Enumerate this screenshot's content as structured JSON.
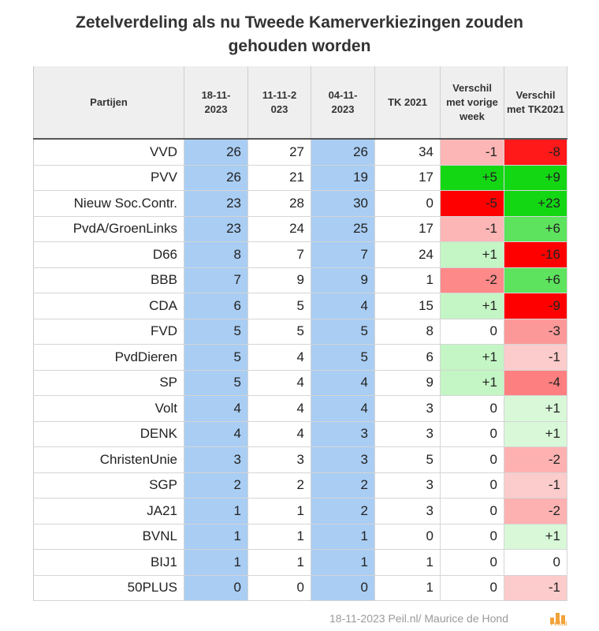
{
  "title_line1": "Zetelverdeling als nu Tweede Kamerverkiezingen zouden",
  "title_line2": "gehouden worden",
  "chart_data": {
    "type": "table",
    "title": "Zetelverdeling als nu Tweede Kamerverkiezingen zouden gehouden worden",
    "headers": [
      "Partijen",
      "18-11-2023",
      "11-11-2023",
      "04-11-2023",
      "TK 2021",
      "Verschil met vorige week",
      "Verschil met TK2021"
    ],
    "rows": [
      {
        "party": "VVD",
        "v1": 26,
        "v2": 27,
        "v3": 26,
        "tk": 34,
        "d1": "-1",
        "d2": "-8"
      },
      {
        "party": "PVV",
        "v1": 26,
        "v2": 21,
        "v3": 19,
        "tk": 17,
        "d1": "+5",
        "d2": "+9"
      },
      {
        "party": "Nieuw Soc.Contr.",
        "v1": 23,
        "v2": 28,
        "v3": 30,
        "tk": 0,
        "d1": "-5",
        "d2": "+23"
      },
      {
        "party": "PvdA/GroenLinks",
        "v1": 23,
        "v2": 24,
        "v3": 25,
        "tk": 17,
        "d1": "-1",
        "d2": "+6"
      },
      {
        "party": "D66",
        "v1": 8,
        "v2": 7,
        "v3": 7,
        "tk": 24,
        "d1": "+1",
        "d2": "-16"
      },
      {
        "party": "BBB",
        "v1": 7,
        "v2": 9,
        "v3": 9,
        "tk": 1,
        "d1": "-2",
        "d2": "+6"
      },
      {
        "party": "CDA",
        "v1": 6,
        "v2": 5,
        "v3": 4,
        "tk": 15,
        "d1": "+1",
        "d2": "-9"
      },
      {
        "party": "FVD",
        "v1": 5,
        "v2": 5,
        "v3": 5,
        "tk": 8,
        "d1": "0",
        "d2": "-3"
      },
      {
        "party": "PvdDieren",
        "v1": 5,
        "v2": 4,
        "v3": 5,
        "tk": 6,
        "d1": "+1",
        "d2": "-1"
      },
      {
        "party": "SP",
        "v1": 5,
        "v2": 4,
        "v3": 4,
        "tk": 9,
        "d1": "+1",
        "d2": "-4"
      },
      {
        "party": "Volt",
        "v1": 4,
        "v2": 4,
        "v3": 4,
        "tk": 3,
        "d1": "0",
        "d2": "+1"
      },
      {
        "party": "DENK",
        "v1": 4,
        "v2": 4,
        "v3": 3,
        "tk": 3,
        "d1": "0",
        "d2": "+1"
      },
      {
        "party": "ChristenUnie",
        "v1": 3,
        "v2": 3,
        "v3": 3,
        "tk": 5,
        "d1": "0",
        "d2": "-2"
      },
      {
        "party": "SGP",
        "v1": 2,
        "v2": 2,
        "v3": 2,
        "tk": 3,
        "d1": "0",
        "d2": "-1"
      },
      {
        "party": "JA21",
        "v1": 1,
        "v2": 1,
        "v3": 2,
        "tk": 3,
        "d1": "0",
        "d2": "-2"
      },
      {
        "party": "BVNL",
        "v1": 1,
        "v2": 1,
        "v3": 1,
        "tk": 0,
        "d1": "0",
        "d2": "+1"
      },
      {
        "party": "BIJ1",
        "v1": 1,
        "v2": 1,
        "v3": 1,
        "tk": 1,
        "d1": "0",
        "d2": "0"
      },
      {
        "party": "50PLUS",
        "v1": 0,
        "v2": 0,
        "v3": 0,
        "tk": 1,
        "d1": "0",
        "d2": "-1"
      }
    ]
  },
  "footer": "18-11-2023 Peil.nl/ Maurice de Hond",
  "logo_text": "Peil.nl",
  "colors": {
    "highlight_blue": "#a9cdf3",
    "positive_green": "#22cc22",
    "negative_red": "#ff0000"
  }
}
